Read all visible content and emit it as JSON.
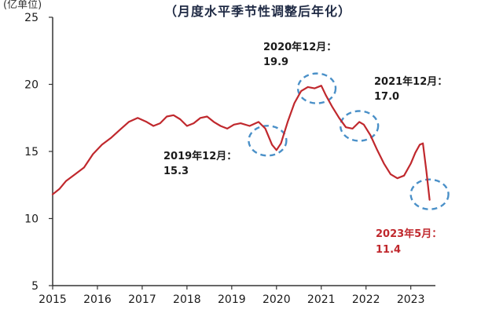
{
  "chart_data": {
    "type": "line",
    "title": "（月度水平季节性调整后年化）",
    "ylabel": "(亿单位)",
    "ylim": [
      5,
      25
    ],
    "yticks": [
      5,
      10,
      15,
      20,
      25
    ],
    "xlim": [
      2015,
      2023.55
    ],
    "xticks": [
      "2015",
      "2016",
      "2017",
      "2018",
      "2019",
      "2020",
      "2021",
      "2022",
      "2023"
    ],
    "grid": false,
    "line_color": "#c0282d",
    "circle_color": "#4a90c8",
    "series": [
      {
        "x": [
          2015.0,
          2015.15,
          2015.3,
          2015.5,
          2015.7,
          2015.9,
          2016.1,
          2016.3,
          2016.5,
          2016.7,
          2016.9,
          2017.1,
          2017.25,
          2017.4,
          2017.55,
          2017.7,
          2017.85,
          2018.0,
          2018.15,
          2018.3,
          2018.45,
          2018.6,
          2018.75,
          2018.9,
          2019.05,
          2019.2,
          2019.4,
          2019.6,
          2019.75,
          2019.9,
          2020.0,
          2020.1,
          2020.25,
          2020.4,
          2020.55,
          2020.7,
          2020.85,
          2021.0,
          2021.1,
          2021.25,
          2021.4,
          2021.55,
          2021.7,
          2021.85,
          2021.95,
          2022.1,
          2022.25,
          2022.4,
          2022.55,
          2022.7,
          2022.85,
          2023.0,
          2023.1,
          2023.2,
          2023.27,
          2023.35,
          2023.42
        ],
        "y": [
          11.8,
          12.2,
          12.8,
          13.3,
          13.8,
          14.8,
          15.5,
          16.0,
          16.6,
          17.2,
          17.5,
          17.2,
          16.9,
          17.1,
          17.6,
          17.7,
          17.4,
          16.9,
          17.1,
          17.5,
          17.6,
          17.2,
          16.9,
          16.7,
          17.0,
          17.1,
          16.9,
          17.2,
          16.7,
          15.5,
          15.1,
          15.6,
          17.2,
          18.6,
          19.5,
          19.8,
          19.7,
          19.9,
          19.2,
          18.3,
          17.5,
          16.8,
          16.7,
          17.2,
          17.0,
          16.2,
          15.1,
          14.1,
          13.3,
          13.0,
          13.2,
          14.1,
          14.9,
          15.5,
          15.6,
          13.5,
          11.4
        ]
      }
    ],
    "annotations": [
      {
        "line1": "2019年12月：",
        "line2": "15.3"
      },
      {
        "line1": "2020年12月：",
        "line2": "19.9"
      },
      {
        "line1": "2021年12月：",
        "line2": "17.0"
      },
      {
        "line1": "2023年5月：",
        "line2": "11.4"
      }
    ]
  }
}
